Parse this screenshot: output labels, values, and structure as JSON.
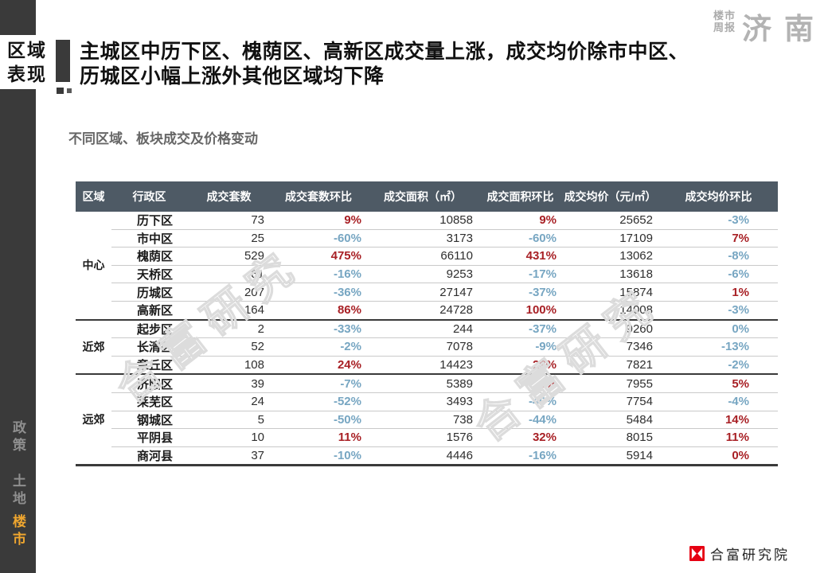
{
  "sidebar": {
    "badge_line1": "区域",
    "badge_line2": "表现",
    "nav": [
      {
        "label": "政策",
        "active": false
      },
      {
        "label": "土地",
        "active": false
      },
      {
        "label": "楼市",
        "active": true
      }
    ]
  },
  "brand": {
    "small_top": "楼市",
    "small_bottom": "周报",
    "city": "济南"
  },
  "title": {
    "line1": "主城区中历下区、槐荫区、高新区成交量上涨，成交均价除市中区、",
    "line2": "历城区小幅上涨外其他区域均下降"
  },
  "subtitle": "不同区域、板块成交及价格变动",
  "watermark": "合富研究",
  "footer": {
    "logo_text": "合富研究院"
  },
  "colors": {
    "up_red": "#a82025",
    "down_blue": "#77a6c2",
    "header_bg": "#4e5a65",
    "sidebar_dark": "#3a3a3a",
    "nav_highlight": "#efa62f",
    "logo_red": "#e60012"
  },
  "chart_data": {
    "type": "table",
    "title": "不同区域、板块成交及价格变动",
    "headers": [
      "区域",
      "行政区",
      "成交套数",
      "成交套数环比",
      "成交面积（㎡）",
      "成交面积环比",
      "成交均价（元/㎡）",
      "成交均价环比"
    ],
    "groups": [
      {
        "label": "中心",
        "rows": [
          {
            "district": "历下区",
            "units": "73",
            "units_pct": "9%",
            "units_dir": "up",
            "area": "10858",
            "area_pct": "9%",
            "area_dir": "up",
            "price": "25652",
            "price_pct": "-3%",
            "price_dir": "down"
          },
          {
            "district": "市中区",
            "units": "25",
            "units_pct": "-60%",
            "units_dir": "down",
            "area": "3173",
            "area_pct": "-60%",
            "area_dir": "down",
            "price": "17109",
            "price_pct": "7%",
            "price_dir": "up"
          },
          {
            "district": "槐荫区",
            "units": "529",
            "units_pct": "475%",
            "units_dir": "up",
            "area": "66110",
            "area_pct": "431%",
            "area_dir": "up",
            "price": "13062",
            "price_pct": "-8%",
            "price_dir": "down"
          },
          {
            "district": "天桥区",
            "units": "81",
            "units_pct": "-16%",
            "units_dir": "down",
            "area": "9253",
            "area_pct": "-17%",
            "area_dir": "down",
            "price": "13618",
            "price_pct": "-6%",
            "price_dir": "down"
          },
          {
            "district": "历城区",
            "units": "207",
            "units_pct": "-36%",
            "units_dir": "down",
            "area": "27147",
            "area_pct": "-37%",
            "area_dir": "down",
            "price": "15874",
            "price_pct": "1%",
            "price_dir": "up"
          },
          {
            "district": "高新区",
            "units": "164",
            "units_pct": "86%",
            "units_dir": "up",
            "area": "24728",
            "area_pct": "100%",
            "area_dir": "up",
            "price": "14008",
            "price_pct": "-3%",
            "price_dir": "down"
          }
        ]
      },
      {
        "label": "近郊",
        "rows": [
          {
            "district": "起步区",
            "units": "2",
            "units_pct": "-33%",
            "units_dir": "down",
            "area": "244",
            "area_pct": "-37%",
            "area_dir": "down",
            "price": "9260",
            "price_pct": "0%",
            "price_dir": "down"
          },
          {
            "district": "长清区",
            "units": "52",
            "units_pct": "-2%",
            "units_dir": "down",
            "area": "7078",
            "area_pct": "-9%",
            "area_dir": "down",
            "price": "7346",
            "price_pct": "-13%",
            "price_dir": "down"
          },
          {
            "district": "章丘区",
            "units": "108",
            "units_pct": "24%",
            "units_dir": "up",
            "area": "14423",
            "area_pct": "29%",
            "area_dir": "up",
            "price": "7821",
            "price_pct": "-2%",
            "price_dir": "down"
          }
        ]
      },
      {
        "label": "远郊",
        "rows": [
          {
            "district": "济阳区",
            "units": "39",
            "units_pct": "-7%",
            "units_dir": "down",
            "area": "5389",
            "area_pct": "2%",
            "area_dir": "up",
            "price": "7955",
            "price_pct": "5%",
            "price_dir": "up"
          },
          {
            "district": "莱芜区",
            "units": "24",
            "units_pct": "-52%",
            "units_dir": "down",
            "area": "3493",
            "area_pct": "-46%",
            "area_dir": "down",
            "price": "7754",
            "price_pct": "-4%",
            "price_dir": "down"
          },
          {
            "district": "钢城区",
            "units": "5",
            "units_pct": "-50%",
            "units_dir": "down",
            "area": "738",
            "area_pct": "-44%",
            "area_dir": "down",
            "price": "5484",
            "price_pct": "14%",
            "price_dir": "up"
          },
          {
            "district": "平阴县",
            "units": "10",
            "units_pct": "11%",
            "units_dir": "up",
            "area": "1576",
            "area_pct": "32%",
            "area_dir": "up",
            "price": "8015",
            "price_pct": "11%",
            "price_dir": "up"
          },
          {
            "district": "商河县",
            "units": "37",
            "units_pct": "-10%",
            "units_dir": "down",
            "area": "4446",
            "area_pct": "-16%",
            "area_dir": "down",
            "price": "5914",
            "price_pct": "0%",
            "price_dir": "up"
          }
        ]
      }
    ]
  }
}
